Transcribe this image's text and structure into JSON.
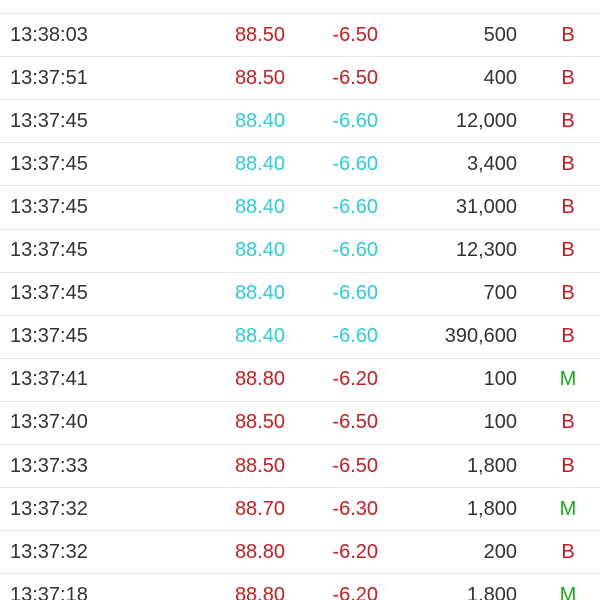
{
  "table": {
    "rows": [
      [
        "13:38:03",
        "88.50",
        "-6.50",
        "500",
        "B"
      ],
      [
        "13:37:51",
        "88.50",
        "-6.50",
        "400",
        "B"
      ],
      [
        "13:37:45",
        "88.40",
        "-6.60",
        "12,000",
        "B"
      ],
      [
        "13:37:45",
        "88.40",
        "-6.60",
        "3,400",
        "B"
      ],
      [
        "13:37:45",
        "88.40",
        "-6.60",
        "31,000",
        "B"
      ],
      [
        "13:37:45",
        "88.40",
        "-6.60",
        "12,300",
        "B"
      ],
      [
        "13:37:45",
        "88.40",
        "-6.60",
        "700",
        "B"
      ],
      [
        "13:37:45",
        "88.40",
        "-6.60",
        "390,600",
        "B"
      ],
      [
        "13:37:41",
        "88.80",
        "-6.20",
        "100",
        "M"
      ],
      [
        "13:37:40",
        "88.50",
        "-6.50",
        "100",
        "B"
      ],
      [
        "13:37:33",
        "88.50",
        "-6.50",
        "1,800",
        "B"
      ],
      [
        "13:37:32",
        "88.70",
        "-6.30",
        "1,800",
        "M"
      ],
      [
        "13:37:32",
        "88.80",
        "-6.20",
        "200",
        "B"
      ],
      [
        "13:37:18",
        "88.80",
        "-6.20",
        "1,800",
        "M"
      ]
    ],
    "price_colors": [
      "#c41e24",
      "#c41e24",
      "#2bcdd6",
      "#2bcdd6",
      "#2bcdd6",
      "#2bcdd6",
      "#2bcdd6",
      "#2bcdd6",
      "#c41e24",
      "#c41e24",
      "#c41e24",
      "#c41e24",
      "#c41e24",
      "#c41e24"
    ],
    "side_colors": [
      "#c41e24",
      "#c41e24",
      "#c41e24",
      "#c41e24",
      "#c41e24",
      "#c41e24",
      "#c41e24",
      "#c41e24",
      "#1aa81a",
      "#c41e24",
      "#c41e24",
      "#1aa81a",
      "#c41e24",
      "#1aa81a"
    ]
  }
}
